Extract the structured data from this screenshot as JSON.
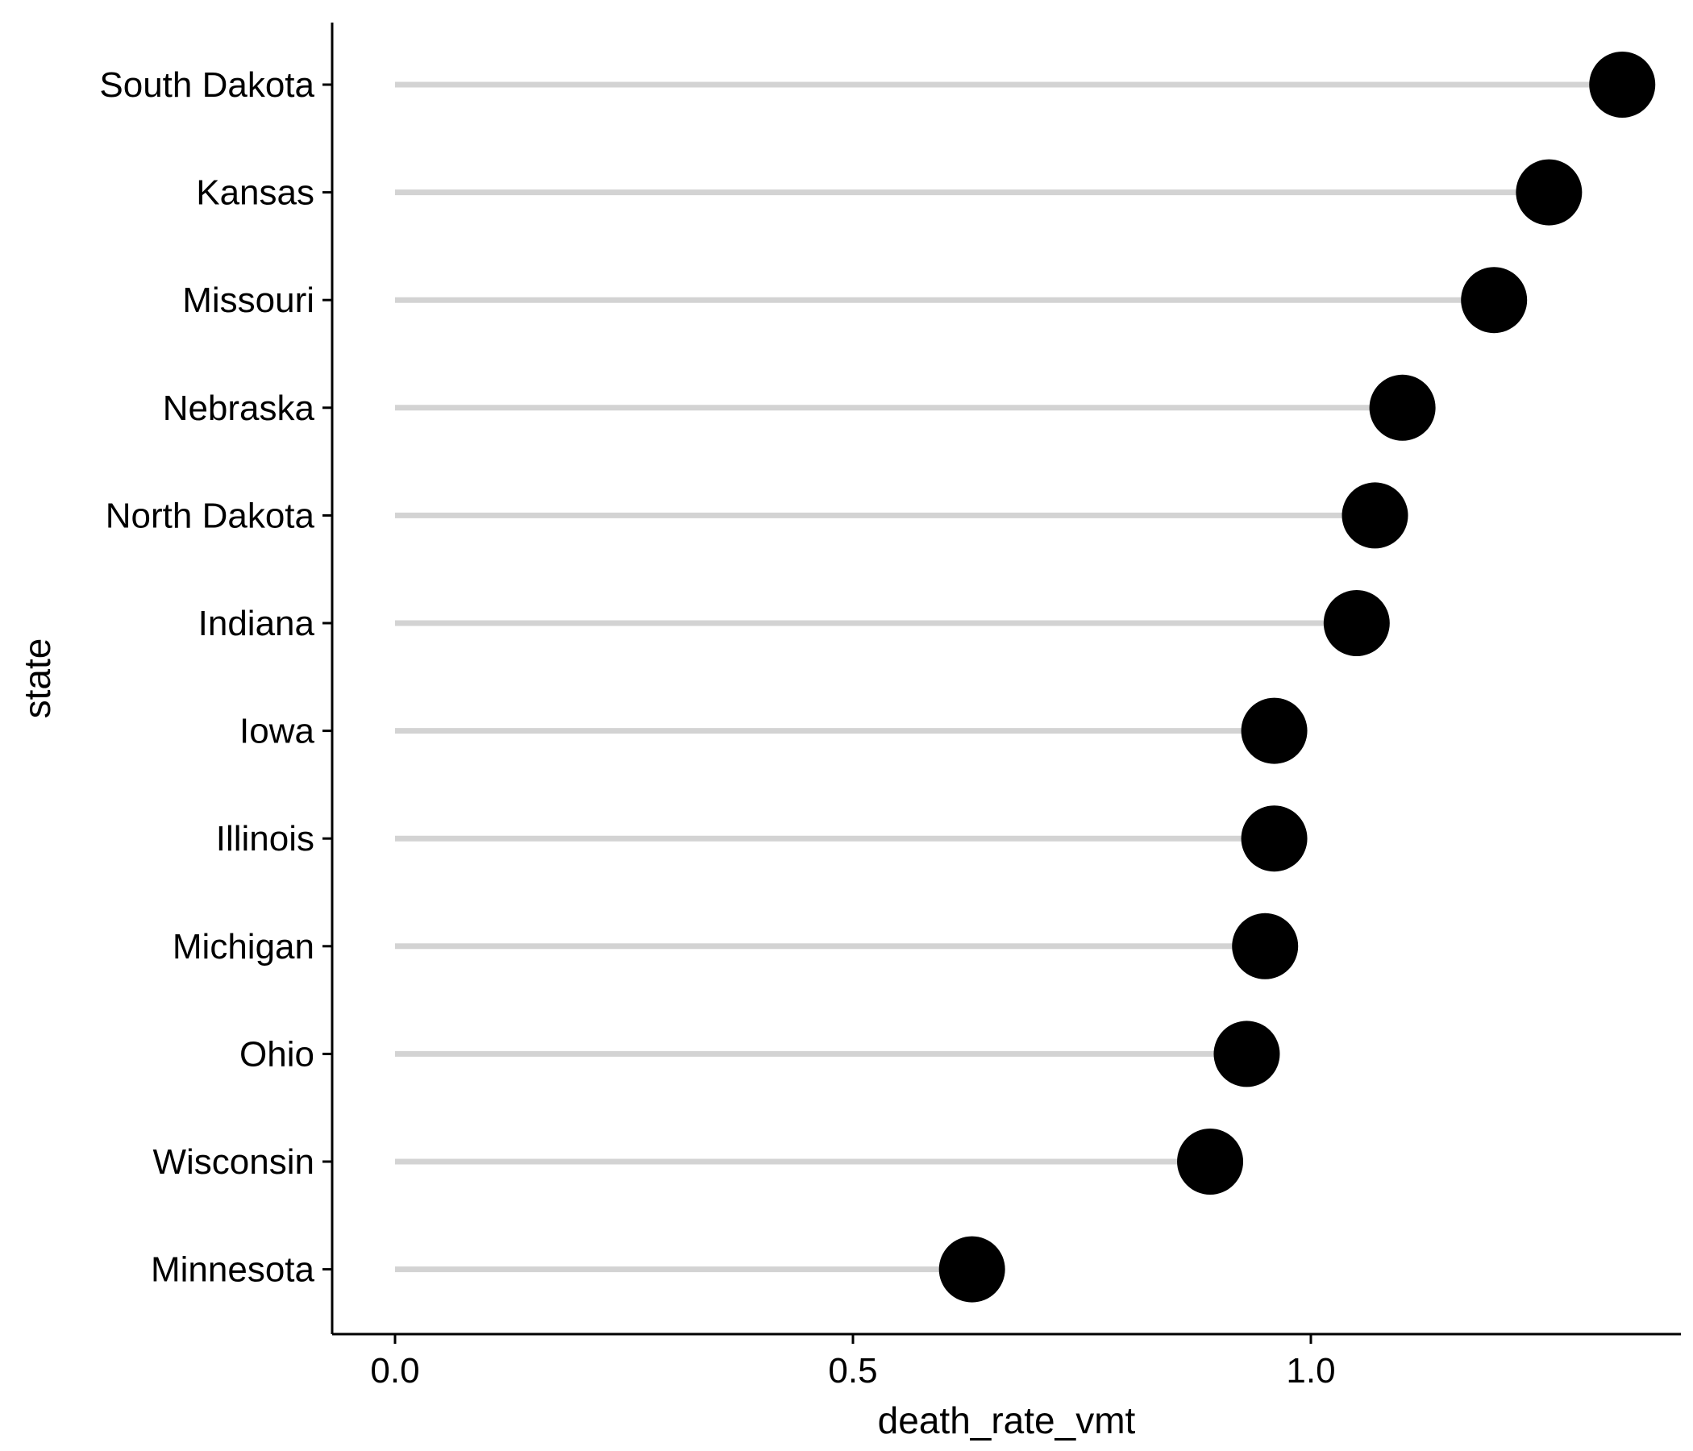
{
  "chart_data": {
    "type": "lollipop",
    "title": "",
    "xlabel": "death_rate_vmt",
    "ylabel": "state",
    "xlim": [
      -0.07,
      1.4
    ],
    "xticks": [
      {
        "value": 0.0,
        "label": "0.0"
      },
      {
        "value": 0.5,
        "label": "0.5"
      },
      {
        "value": 1.0,
        "label": "1.0"
      }
    ],
    "grid": false,
    "legend": "none",
    "categories": [
      "South Dakota",
      "Kansas",
      "Missouri",
      "Nebraska",
      "North Dakota",
      "Indiana",
      "Iowa",
      "Illinois",
      "Michigan",
      "Ohio",
      "Wisconsin",
      "Minnesota"
    ],
    "values": [
      1.34,
      1.26,
      1.2,
      1.1,
      1.07,
      1.05,
      0.96,
      0.96,
      0.95,
      0.93,
      0.89,
      0.63
    ],
    "colors": {
      "stem": "#d3d3d3",
      "point": "#000000",
      "axis": "#000000"
    }
  }
}
